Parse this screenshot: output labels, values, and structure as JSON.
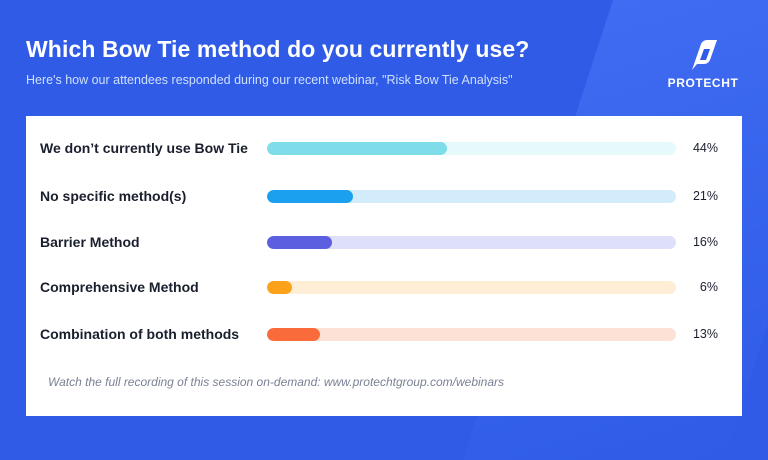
{
  "header": {
    "title": "Which Bow Tie method do you currently use?",
    "subtitle": "Here's how our attendees responded during our recent webinar, \"Risk Bow Tie Analysis\""
  },
  "logo": {
    "text": "PROTECHT"
  },
  "chart_data": {
    "type": "bar",
    "orientation": "horizontal",
    "categories": [
      "We don’t currently use Bow Tie",
      "No specific method(s)",
      "Barrier Method",
      "Comprehensive Method",
      "Combination of both methods"
    ],
    "values": [
      44,
      21,
      16,
      6,
      13
    ],
    "value_labels": [
      "44%",
      "21%",
      "16%",
      "6%",
      "13%"
    ],
    "colors": [
      "#7edde9",
      "#1aa0ef",
      "#5b5fe0",
      "#fba21a",
      "#fa6b3c"
    ],
    "track_colors": [
      "#e6f9fb",
      "#d2ecfc",
      "#dedff8",
      "#fdeed5",
      "#fde0d6"
    ],
    "xlim": [
      0,
      100
    ],
    "grid": false,
    "legend": "none"
  },
  "footer": {
    "text": "Watch the full recording of this session on-demand: www.protechtgroup.com/webinars"
  },
  "colors": {
    "background": "#2f5be6",
    "card": "#ffffff",
    "subtitle": "#cfe0ff"
  }
}
